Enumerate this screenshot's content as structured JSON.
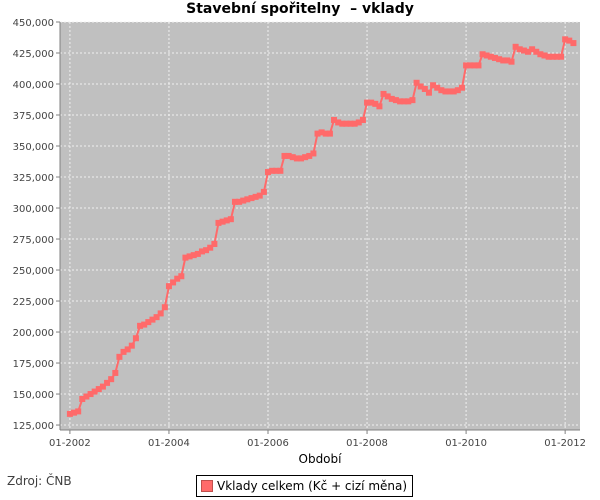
{
  "colors": {
    "plot_bg": "#c0c0c0",
    "series": "#ff6a6a",
    "grid": "#f0f0f0"
  },
  "source": "Zdroj: ČNB",
  "chart_data": {
    "type": "line",
    "title": "Stavební spořitelny  – vklady",
    "xlabel": "Období",
    "ylabel": "",
    "grid": true,
    "legend_position": "bottom",
    "xlim": [
      2001.8,
      2012.3
    ],
    "ylim": [
      121000,
      450000
    ],
    "yticks": [
      125000,
      150000,
      175000,
      200000,
      225000,
      250000,
      275000,
      300000,
      325000,
      350000,
      375000,
      400000,
      425000,
      450000
    ],
    "ytick_labels": [
      "125,000",
      "150,000",
      "175,000",
      "200,000",
      "225,000",
      "250,000",
      "275,000",
      "300,000",
      "325,000",
      "350,000",
      "375,000",
      "400,000",
      "425,000",
      "450,000"
    ],
    "xticks": [
      2002,
      2004,
      2006,
      2008,
      2010,
      2012
    ],
    "xtick_labels": [
      "01-2002",
      "01-2004",
      "01-2006",
      "01-2008",
      "01-2010",
      "01-2012"
    ],
    "series": [
      {
        "name": "Vklady celkem (Kč + cizí měna)",
        "x": [
          2002.0,
          2002.083,
          2002.167,
          2002.25,
          2002.333,
          2002.417,
          2002.5,
          2002.583,
          2002.667,
          2002.75,
          2002.833,
          2002.917,
          2003.0,
          2003.083,
          2003.167,
          2003.25,
          2003.333,
          2003.417,
          2003.5,
          2003.583,
          2003.667,
          2003.75,
          2003.833,
          2003.917,
          2004.0,
          2004.083,
          2004.167,
          2004.25,
          2004.333,
          2004.417,
          2004.5,
          2004.583,
          2004.667,
          2004.75,
          2004.833,
          2004.917,
          2005.0,
          2005.083,
          2005.167,
          2005.25,
          2005.333,
          2005.417,
          2005.5,
          2005.583,
          2005.667,
          2005.75,
          2005.833,
          2005.917,
          2006.0,
          2006.083,
          2006.167,
          2006.25,
          2006.333,
          2006.417,
          2006.5,
          2006.583,
          2006.667,
          2006.75,
          2006.833,
          2006.917,
          2007.0,
          2007.083,
          2007.167,
          2007.25,
          2007.333,
          2007.417,
          2007.5,
          2007.583,
          2007.667,
          2007.75,
          2007.833,
          2007.917,
          2008.0,
          2008.083,
          2008.167,
          2008.25,
          2008.333,
          2008.417,
          2008.5,
          2008.583,
          2008.667,
          2008.75,
          2008.833,
          2008.917,
          2009.0,
          2009.083,
          2009.167,
          2009.25,
          2009.333,
          2009.417,
          2009.5,
          2009.583,
          2009.667,
          2009.75,
          2009.833,
          2009.917,
          2010.0,
          2010.083,
          2010.167,
          2010.25,
          2010.333,
          2010.417,
          2010.5,
          2010.583,
          2010.667,
          2010.75,
          2010.833,
          2010.917,
          2011.0,
          2011.083,
          2011.167,
          2011.25,
          2011.333,
          2011.417,
          2011.5,
          2011.583,
          2011.667,
          2011.75,
          2011.833,
          2011.917,
          2012.0,
          2012.083,
          2012.167
        ],
        "values": [
          134000,
          135000,
          136000,
          146000,
          148000,
          150000,
          152000,
          154000,
          156000,
          159000,
          162000,
          167000,
          180000,
          184000,
          186000,
          189000,
          195000,
          205000,
          206000,
          208000,
          210000,
          212000,
          215000,
          220000,
          237000,
          240000,
          243000,
          245000,
          260000,
          261000,
          262000,
          263000,
          265000,
          266000,
          268000,
          271000,
          288000,
          289000,
          290000,
          291000,
          305000,
          305000,
          306000,
          307000,
          308000,
          309000,
          310000,
          313000,
          329000,
          330000,
          330000,
          330000,
          342000,
          342000,
          341000,
          340000,
          340000,
          341000,
          342000,
          344000,
          360000,
          361000,
          360000,
          360000,
          371000,
          369000,
          368000,
          368000,
          368000,
          368000,
          369000,
          371000,
          385000,
          385000,
          384000,
          382000,
          392000,
          390000,
          388000,
          387000,
          386000,
          386000,
          386000,
          387000,
          401000,
          398000,
          396000,
          393000,
          399000,
          397000,
          395000,
          394000,
          394000,
          394000,
          395000,
          397000,
          415000,
          415000,
          415000,
          415000,
          424000,
          423000,
          422000,
          421000,
          420000,
          419000,
          419000,
          418000,
          430000,
          428000,
          427000,
          426000,
          428000,
          426000,
          424000,
          423000,
          422000,
          422000,
          422000,
          422000,
          436000,
          435000,
          433000
        ]
      }
    ]
  }
}
